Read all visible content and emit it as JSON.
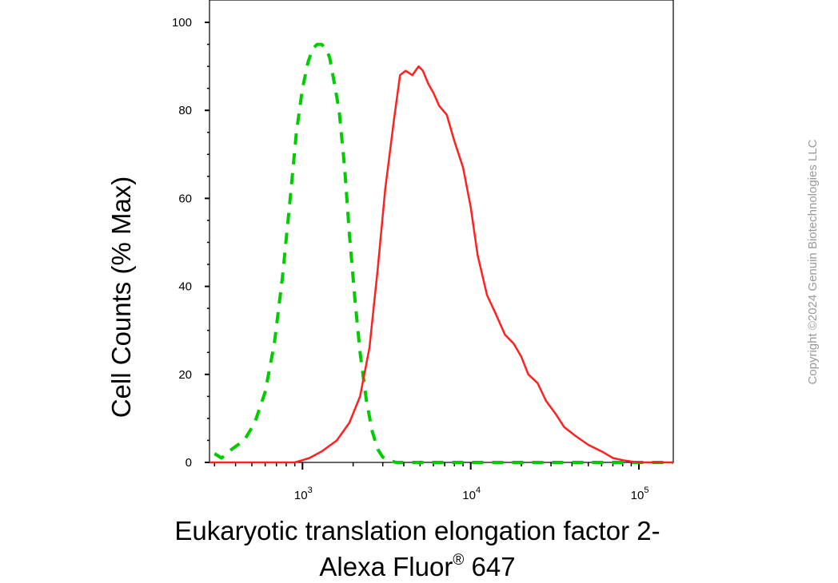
{
  "chart_data": {
    "type": "line",
    "xlabel_line1": "Eukaryotic translation elongation factor 2-",
    "xlabel_line2": "Alexa Fluor",
    "xlabel_sup": "®",
    "xlabel_line2_end": " 647",
    "ylabel": "Cell Counts (% Max)",
    "x_scale": "log",
    "xlim": [
      280,
      160000
    ],
    "ylim": [
      0,
      105
    ],
    "y_ticks": [
      0,
      20,
      40,
      60,
      80,
      100
    ],
    "x_ticks": [
      {
        "value": 1000,
        "base": "10",
        "exp": "3"
      },
      {
        "value": 10000,
        "base": "10",
        "exp": "4"
      },
      {
        "value": 100000,
        "base": "10",
        "exp": "5"
      }
    ],
    "grid": false,
    "series": [
      {
        "color": "#00cc00",
        "style": "dashed",
        "x": [
          300,
          330,
          380,
          450,
          520,
          600,
          680,
          760,
          840,
          920,
          1000,
          1080,
          1150,
          1220,
          1300,
          1380,
          1450,
          1550,
          1650,
          1780,
          1900,
          2050,
          2200,
          2400,
          2600,
          2800,
          3000,
          3300,
          3600,
          4000,
          6000,
          10000,
          30000,
          100000,
          160000
        ],
        "y": [
          2,
          1,
          3,
          5,
          9,
          16,
          27,
          42,
          59,
          75,
          85,
          91,
          94,
          95,
          95,
          94,
          92,
          86,
          80,
          67,
          52,
          37,
          25,
          14,
          7,
          3,
          1.2,
          0.4,
          0,
          0,
          0,
          0,
          0,
          0,
          0
        ]
      },
      {
        "color": "#ff2020",
        "style": "solid",
        "x": [
          280,
          900,
          1000,
          1100,
          1300,
          1600,
          1900,
          2200,
          2500,
          2800,
          3100,
          3500,
          3800,
          4100,
          4500,
          4900,
          5200,
          5600,
          6000,
          6500,
          7200,
          8000,
          9000,
          10000,
          11000,
          12500,
          14000,
          16000,
          18000,
          20000,
          22000,
          25000,
          28000,
          32000,
          36000,
          42000,
          50000,
          60000,
          70000,
          80000,
          90000,
          100000,
          160000
        ],
        "y": [
          0,
          0,
          0.5,
          1,
          2.5,
          5,
          9,
          15,
          26,
          44,
          62,
          78,
          88,
          89,
          88,
          90,
          89,
          86,
          84,
          81,
          79,
          73,
          67,
          58,
          47,
          38,
          34,
          29,
          27,
          24,
          20,
          18,
          14,
          11,
          8,
          6,
          4,
          2.5,
          1,
          0.5,
          0.2,
          0,
          0
        ]
      }
    ]
  },
  "watermark": "Copyright ©2024 Genuin Biotechnologies LLC"
}
